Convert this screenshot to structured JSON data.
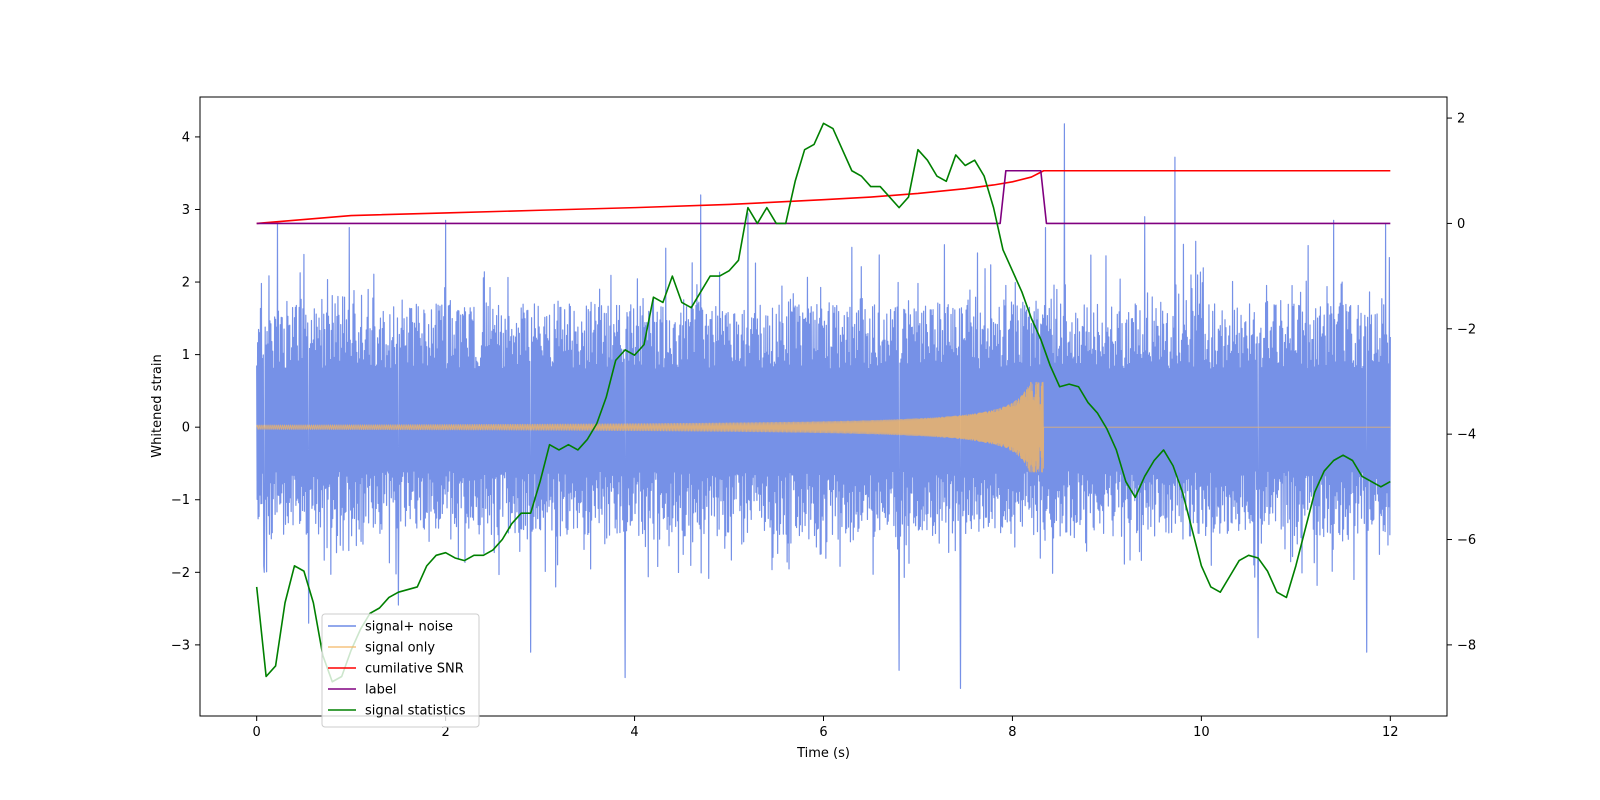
{
  "chart_data": {
    "type": "line",
    "xlabel": "Time (s)",
    "ylabel_left": "Whitened strain",
    "ylabel_right": "",
    "xlim": [
      -0.6,
      12.6
    ],
    "ylim_left": [
      -3.98,
      4.55
    ],
    "ylim_right": [
      -9.35,
      2.4
    ],
    "x_ticks": [
      0,
      2,
      4,
      6,
      8,
      10,
      12
    ],
    "y_ticks_left": [
      -3,
      -2,
      -1,
      0,
      1,
      2,
      3,
      4
    ],
    "y_ticks_right": [
      -8,
      -6,
      -4,
      -2,
      0,
      2
    ],
    "grid": false,
    "legend_position": "lower-left",
    "series": [
      {
        "name": "signal+ noise",
        "axis": "left",
        "color": "#6f8be6",
        "kind": "noise",
        "x_range": [
          0,
          12
        ],
        "envelope_lo": -1.5,
        "envelope_hi": 1.7,
        "spikes": [
          {
            "x": 0.08,
            "y": -2.0
          },
          {
            "x": 0.22,
            "y": 2.8
          },
          {
            "x": 0.55,
            "y": -2.7
          },
          {
            "x": 0.98,
            "y": 2.75
          },
          {
            "x": 1.5,
            "y": -2.45
          },
          {
            "x": 2.0,
            "y": 2.85
          },
          {
            "x": 2.9,
            "y": -3.1
          },
          {
            "x": 3.9,
            "y": -3.45
          },
          {
            "x": 4.7,
            "y": 3.2
          },
          {
            "x": 5.2,
            "y": 2.95
          },
          {
            "x": 6.8,
            "y": -3.35
          },
          {
            "x": 7.45,
            "y": -3.6
          },
          {
            "x": 8.35,
            "y": 2.75
          },
          {
            "x": 8.55,
            "y": 4.18
          },
          {
            "x": 9.4,
            "y": 2.9
          },
          {
            "x": 9.72,
            "y": 3.72
          },
          {
            "x": 10.6,
            "y": -2.9
          },
          {
            "x": 11.4,
            "y": 2.85
          },
          {
            "x": 11.75,
            "y": -3.1
          },
          {
            "x": 11.95,
            "y": 2.8
          }
        ]
      },
      {
        "name": "signal only",
        "axis": "left",
        "color": "#f5b560",
        "kind": "chirp",
        "x_range": [
          0,
          12
        ],
        "merger_time": 8.33,
        "peak_amplitude": 0.62,
        "start_amplitude": 0.03
      },
      {
        "name": "cumilative SNR",
        "axis": "right",
        "color": "#ff0000",
        "x": [
          0,
          1,
          2,
          3,
          4,
          5,
          6,
          6.5,
          7,
          7.5,
          7.8,
          8.0,
          8.2,
          8.33,
          8.34,
          12
        ],
        "y": [
          0,
          0.15,
          0.2,
          0.25,
          0.3,
          0.36,
          0.45,
          0.5,
          0.57,
          0.66,
          0.73,
          0.79,
          0.88,
          1.0,
          1.0,
          1.0
        ]
      },
      {
        "name": "label",
        "axis": "right",
        "color": "#800080",
        "x": [
          0,
          7.87,
          7.93,
          8.3,
          8.36,
          12
        ],
        "y": [
          0,
          0,
          1,
          1,
          0,
          0
        ]
      },
      {
        "name": "signal statistics",
        "axis": "right",
        "color": "#008000",
        "x": [
          0,
          0.1,
          0.2,
          0.3,
          0.4,
          0.5,
          0.6,
          0.7,
          0.8,
          0.9,
          1.0,
          1.1,
          1.2,
          1.3,
          1.4,
          1.5,
          1.6,
          1.7,
          1.8,
          1.9,
          2.0,
          2.1,
          2.2,
          2.3,
          2.4,
          2.5,
          2.6,
          2.7,
          2.8,
          2.9,
          3.0,
          3.1,
          3.2,
          3.3,
          3.4,
          3.5,
          3.6,
          3.7,
          3.8,
          3.9,
          4.0,
          4.1,
          4.2,
          4.3,
          4.4,
          4.5,
          4.6,
          4.7,
          4.8,
          4.9,
          5.0,
          5.1,
          5.2,
          5.3,
          5.4,
          5.5,
          5.6,
          5.7,
          5.8,
          5.9,
          6.0,
          6.1,
          6.2,
          6.3,
          6.4,
          6.5,
          6.6,
          6.7,
          6.8,
          6.9,
          7.0,
          7.1,
          7.2,
          7.3,
          7.4,
          7.5,
          7.6,
          7.7,
          7.8,
          7.9,
          8.0,
          8.1,
          8.2,
          8.3,
          8.4,
          8.5,
          8.6,
          8.7,
          8.8,
          8.9,
          9.0,
          9.1,
          9.2,
          9.3,
          9.4,
          9.5,
          9.6,
          9.7,
          9.8,
          9.9,
          10.0,
          10.1,
          10.2,
          10.3,
          10.4,
          10.5,
          10.6,
          10.7,
          10.8,
          10.9,
          11.0,
          11.1,
          11.2,
          11.3,
          11.4,
          11.5,
          11.6,
          11.7,
          11.8,
          11.9,
          12.0
        ],
        "y": [
          -6.9,
          -8.6,
          -8.4,
          -7.2,
          -6.5,
          -6.6,
          -7.2,
          -8.2,
          -8.7,
          -8.6,
          -8.1,
          -7.7,
          -7.4,
          -7.3,
          -7.1,
          -7.0,
          -6.95,
          -6.9,
          -6.5,
          -6.3,
          -6.25,
          -6.35,
          -6.4,
          -6.3,
          -6.3,
          -6.2,
          -6.0,
          -5.7,
          -5.5,
          -5.5,
          -4.9,
          -4.2,
          -4.3,
          -4.2,
          -4.3,
          -4.1,
          -3.8,
          -3.3,
          -2.6,
          -2.4,
          -2.5,
          -2.3,
          -1.4,
          -1.5,
          -1.0,
          -1.5,
          -1.6,
          -1.3,
          -1.0,
          -1.0,
          -0.9,
          -0.7,
          0.3,
          0.0,
          0.3,
          0.0,
          0.0,
          0.8,
          1.4,
          1.5,
          1.9,
          1.8,
          1.4,
          1.0,
          0.9,
          0.7,
          0.7,
          0.5,
          0.3,
          0.5,
          1.4,
          1.2,
          0.9,
          0.8,
          1.3,
          1.1,
          1.2,
          0.9,
          0.3,
          -0.5,
          -0.9,
          -1.3,
          -1.8,
          -2.2,
          -2.7,
          -3.1,
          -3.05,
          -3.1,
          -3.4,
          -3.6,
          -3.9,
          -4.3,
          -4.9,
          -5.2,
          -4.8,
          -4.5,
          -4.3,
          -4.6,
          -5.1,
          -5.8,
          -6.5,
          -6.9,
          -7.0,
          -6.7,
          -6.4,
          -6.3,
          -6.35,
          -6.6,
          -7.0,
          -7.1,
          -6.5,
          -5.8,
          -5.1,
          -4.7,
          -4.5,
          -4.4,
          -4.5,
          -4.8,
          -4.9,
          -5.0,
          -4.9
        ]
      }
    ]
  }
}
